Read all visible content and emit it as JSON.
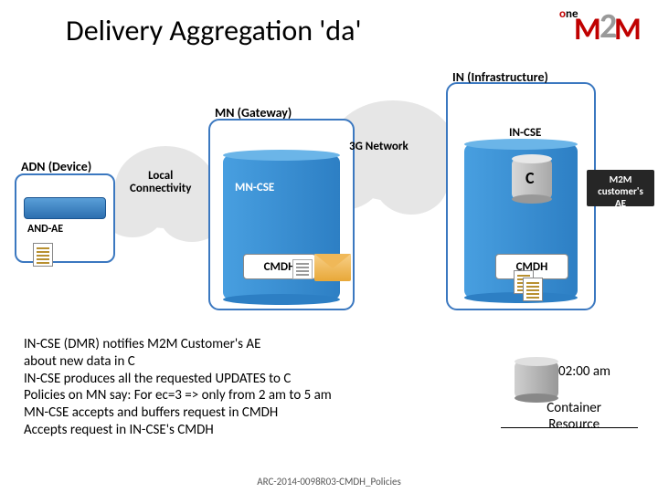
{
  "title": "Delivery Aggregation 'da'",
  "labels": {
    "in": "IN (Infrastructure)",
    "mn": "MN (Gateway)",
    "adn": "ADN (Device)",
    "net3g": "3G Network",
    "local1": "Local",
    "local2": "Connectivity",
    "incse": "IN-CSE",
    "mncse": "MN-CSE",
    "andae": "AND-AE",
    "c": "C",
    "cmdh": "CMDH",
    "ae1": "M2M customer's",
    "ae2": "AE",
    "time": "02:00 am",
    "res1": "Container",
    "res2": "Resource"
  },
  "bullets": [
    "IN-CSE (DMR) notifies M2M Customer's AE",
    "about new data in C",
    "IN-CSE produces all the requested UPDATES to C",
    "Policies on MN say: For ec=3  => only from 2 am to 5 am",
    "MN-CSE accepts and buffers request in CMDH",
    "Accepts request in IN-CSE's CMDH"
  ],
  "footer": "ARC-2014-0098R03-CMDH_Policies",
  "colors": {
    "accent": "#3b78c0",
    "cyl_light": "#489fe0",
    "cyl_dark": "#2d7fc4",
    "logo_red": "#c00000",
    "cloud": "#e6e6e6",
    "badge_bg": "#262626"
  }
}
